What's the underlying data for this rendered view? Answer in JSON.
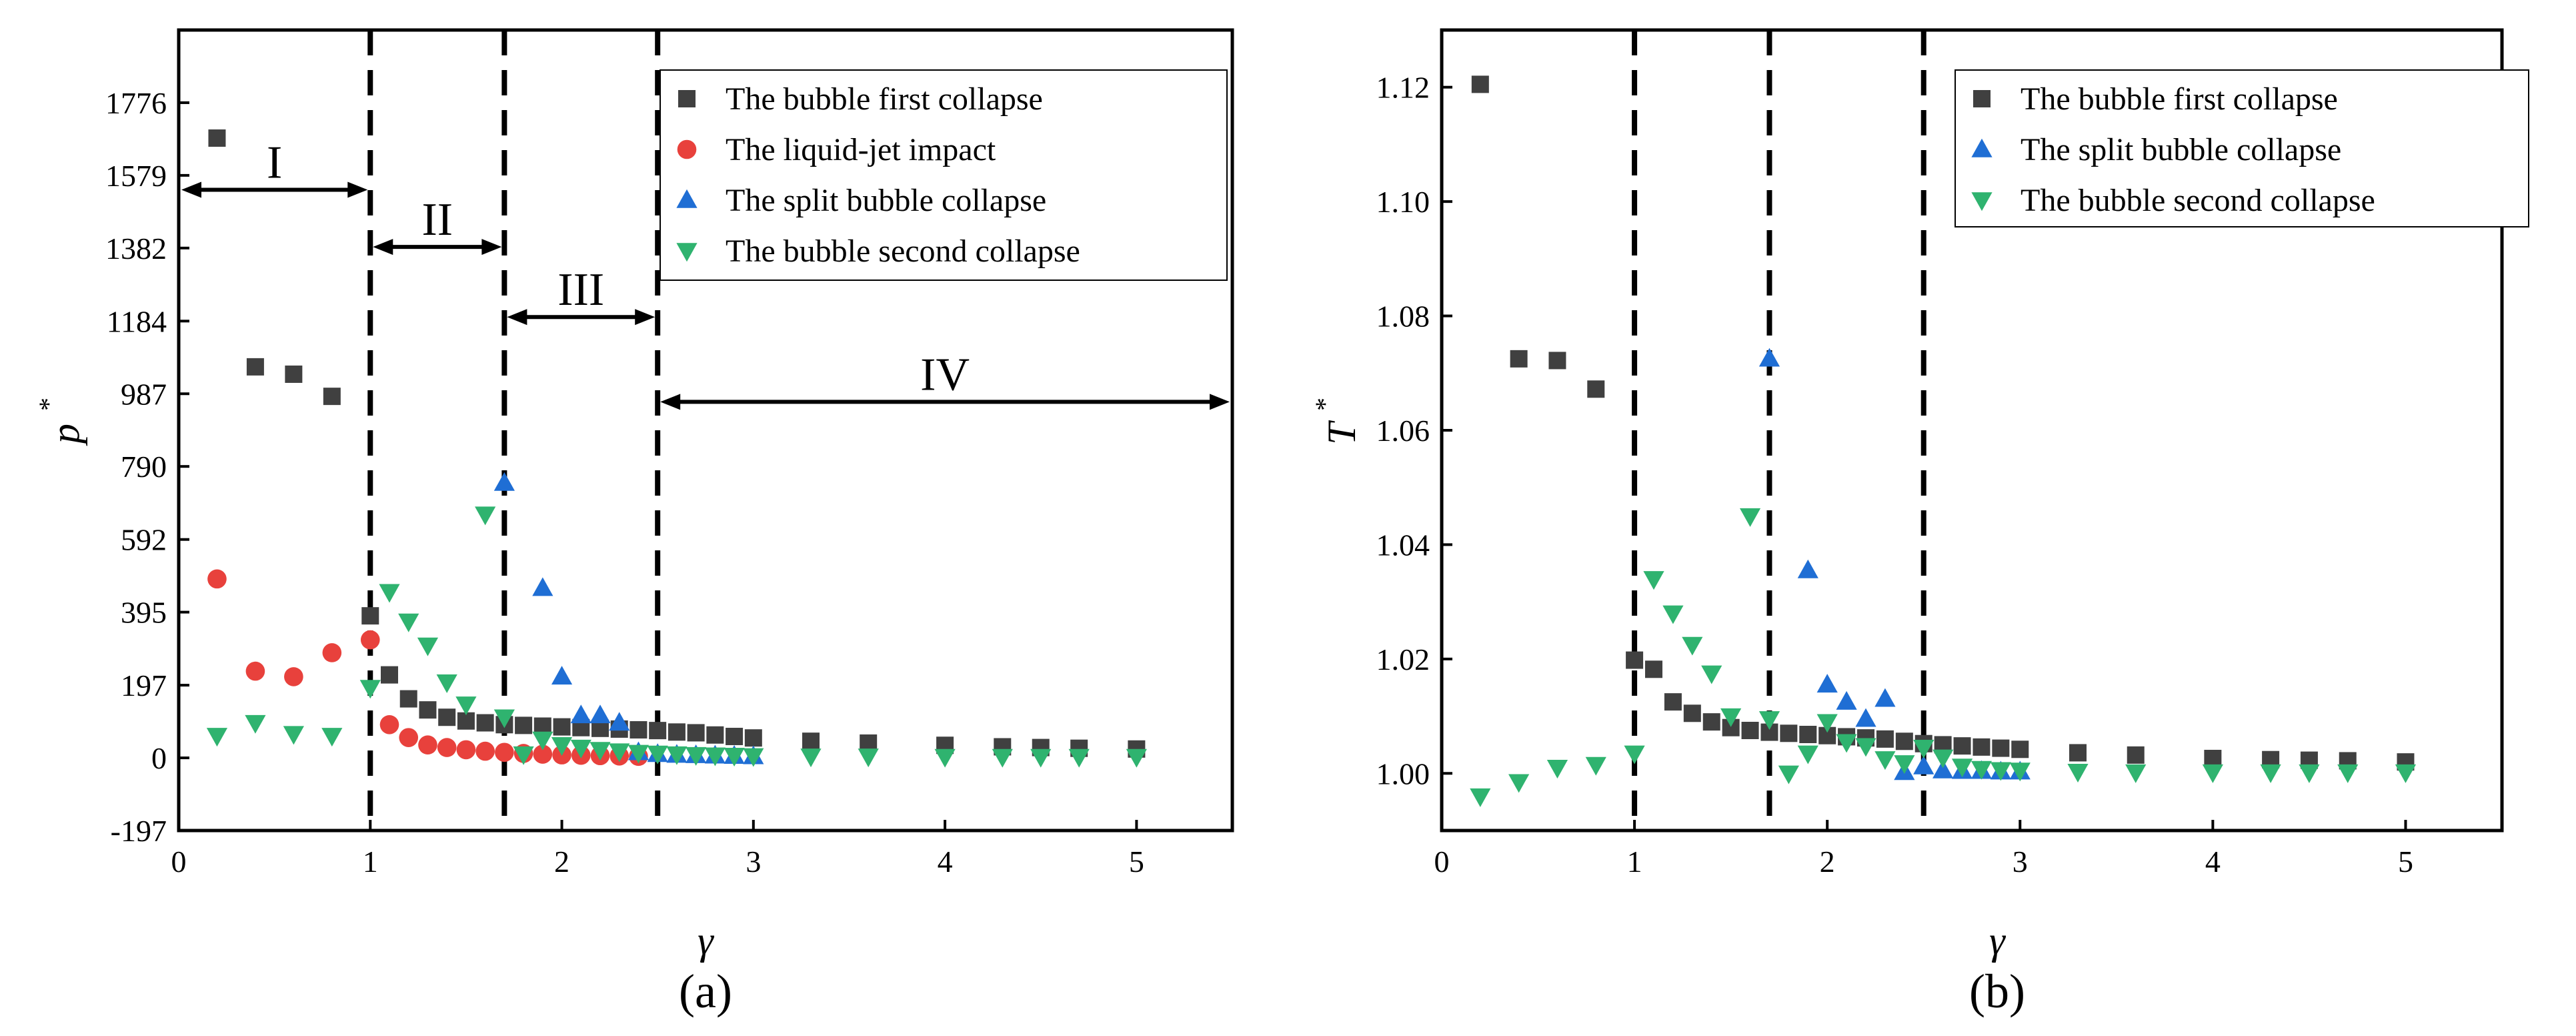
{
  "figure": {
    "panel_a_label": "(a)",
    "panel_b_label": "(b)"
  },
  "chart_data": [
    {
      "type": "scatter",
      "panel": "(a)",
      "xlabel": "γ",
      "ylabel": "p",
      "ylabel_superscript": "*",
      "xlim": [
        0,
        5.5
      ],
      "ylim": [
        -197,
        1973
      ],
      "xticks": [
        0,
        1,
        2,
        3,
        4,
        5
      ],
      "yticks": [
        -197,
        0,
        197,
        395,
        592,
        790,
        987,
        1184,
        1382,
        1579,
        1776
      ],
      "legend_position": "top-right",
      "boundaries": [
        1,
        1.7,
        2.5
      ],
      "regions": [
        {
          "label": "I",
          "from": 0,
          "to": 1,
          "y": 1540
        },
        {
          "label": "II",
          "from": 1,
          "to": 1.7,
          "y": 1385
        },
        {
          "label": "III",
          "from": 1.7,
          "to": 2.5,
          "y": 1195
        },
        {
          "label": "IV",
          "from": 2.5,
          "to": 5.5,
          "y": 965
        }
      ],
      "series": [
        {
          "name": "The bubble first collapse",
          "marker": "square",
          "color": "#404040",
          "x": [
            0.2,
            0.4,
            0.6,
            0.8,
            1.0,
            1.1,
            1.2,
            1.3,
            1.4,
            1.5,
            1.6,
            1.7,
            1.8,
            1.9,
            2.0,
            2.1,
            2.2,
            2.3,
            2.4,
            2.5,
            2.6,
            2.7,
            2.8,
            2.9,
            3.0,
            3.3,
            3.6,
            4.0,
            4.3,
            4.5,
            4.7,
            5.0
          ],
          "values": [
            1680,
            1060,
            1040,
            980,
            385,
            225,
            160,
            130,
            110,
            100,
            95,
            90,
            88,
            86,
            84,
            82,
            80,
            78,
            76,
            74,
            70,
            68,
            62,
            58,
            54,
            45,
            40,
            34,
            30,
            28,
            26,
            24
          ]
        },
        {
          "name": "The liquid-jet impact",
          "marker": "circle",
          "color": "#e8413c",
          "x": [
            0.2,
            0.4,
            0.6,
            0.8,
            1.0,
            1.1,
            1.2,
            1.3,
            1.4,
            1.5,
            1.6,
            1.7,
            1.8,
            1.9,
            2.0,
            2.1,
            2.2,
            2.3,
            2.4
          ],
          "values": [
            485,
            235,
            220,
            285,
            320,
            90,
            55,
            35,
            28,
            22,
            18,
            15,
            12,
            10,
            8,
            7,
            6,
            5,
            4
          ]
        },
        {
          "name": "The split bubble collapse",
          "marker": "triangle-up",
          "color": "#1f6ed4",
          "x": [
            1.7,
            1.9,
            2.0,
            2.1,
            2.2,
            2.3,
            2.4,
            2.5,
            2.6,
            2.7,
            2.8,
            2.9,
            3.0
          ],
          "values": [
            745,
            460,
            220,
            115,
            115,
            95,
            15,
            10,
            8,
            7,
            6,
            5,
            4
          ]
        },
        {
          "name": "The bubble second collapse",
          "marker": "triangle-down",
          "color": "#2fb36f",
          "x": [
            0.2,
            0.4,
            0.6,
            0.8,
            1.0,
            1.1,
            1.2,
            1.3,
            1.4,
            1.5,
            1.6,
            1.7,
            1.8,
            1.9,
            2.0,
            2.1,
            2.2,
            2.3,
            2.4,
            2.5,
            2.6,
            2.7,
            2.8,
            2.9,
            3.0,
            3.3,
            3.6,
            4.0,
            4.3,
            4.5,
            4.7,
            5.0
          ],
          "values": [
            60,
            95,
            65,
            60,
            190,
            450,
            370,
            305,
            205,
            145,
            660,
            110,
            10,
            50,
            35,
            28,
            22,
            18,
            14,
            12,
            10,
            8,
            7,
            6,
            5,
            4,
            4,
            3,
            3,
            3,
            3,
            3
          ]
        }
      ]
    },
    {
      "type": "scatter",
      "panel": "(b)",
      "xlabel": "γ",
      "ylabel": "T",
      "ylabel_superscript": "*",
      "xlim": [
        0,
        5.5
      ],
      "ylim": [
        0.99,
        1.13
      ],
      "xticks": [
        0,
        1,
        2,
        3,
        4,
        5
      ],
      "yticks": [
        1.0,
        1.02,
        1.04,
        1.06,
        1.08,
        1.1,
        1.12
      ],
      "ytick_labels": [
        "1.00",
        "1.02",
        "1.04",
        "1.06",
        "1.08",
        "1.10",
        "1.12"
      ],
      "legend_position": "top-right",
      "boundaries": [
        1,
        1.7,
        2.5
      ],
      "series": [
        {
          "name": "The bubble first collapse",
          "marker": "square",
          "color": "#404040",
          "x": [
            0.2,
            0.4,
            0.6,
            0.8,
            1.0,
            1.1,
            1.2,
            1.3,
            1.4,
            1.5,
            1.6,
            1.7,
            1.8,
            1.9,
            2.0,
            2.1,
            2.2,
            2.3,
            2.4,
            2.5,
            2.6,
            2.7,
            2.8,
            2.9,
            3.0,
            3.3,
            3.6,
            4.0,
            4.3,
            4.5,
            4.7,
            5.0
          ],
          "values": [
            1.1205,
            1.0725,
            1.0722,
            1.0672,
            1.0198,
            1.0182,
            1.0125,
            1.0105,
            1.009,
            1.008,
            1.0075,
            1.0072,
            1.007,
            1.0068,
            1.0066,
            1.0064,
            1.0062,
            1.006,
            1.0056,
            1.0052,
            1.005,
            1.0048,
            1.0046,
            1.0044,
            1.0042,
            1.0036,
            1.0032,
            1.0026,
            1.0024,
            1.0023,
            1.0022,
            1.002
          ]
        },
        {
          "name": "The split bubble collapse",
          "marker": "triangle-up",
          "color": "#1f6ed4",
          "x": [
            1.7,
            1.9,
            2.0,
            2.1,
            2.2,
            2.3,
            2.4,
            2.5,
            2.6,
            2.7,
            2.8,
            2.9,
            3.0
          ],
          "values": [
            1.0725,
            1.0355,
            1.0155,
            1.0125,
            1.0095,
            1.013,
            1.0002,
            1.0012,
            1.0005,
            1.0004,
            1.0004,
            1.0003,
            1.0003
          ]
        },
        {
          "name": "The bubble second collapse",
          "marker": "triangle-down",
          "color": "#2fb36f",
          "x": [
            0.2,
            0.4,
            0.6,
            0.8,
            1.0,
            1.1,
            1.2,
            1.3,
            1.4,
            1.5,
            1.6,
            1.7,
            1.8,
            1.9,
            2.0,
            2.1,
            2.2,
            2.3,
            2.4,
            2.5,
            2.6,
            2.7,
            2.8,
            2.9,
            3.0,
            3.3,
            3.6,
            4.0,
            4.3,
            4.5,
            4.7,
            5.0
          ],
          "values": [
            0.996,
            0.9985,
            1.001,
            1.0015,
            1.0035,
            1.034,
            1.028,
            1.0225,
            1.0175,
            1.01,
            1.045,
            1.0095,
            1.0,
            1.0035,
            1.009,
            1.0055,
            1.0048,
            1.0025,
            1.0018,
            1.0045,
            1.0028,
            1.0012,
            1.0008,
            1.0006,
            1.0005,
            1.0003,
            1.0002,
            1.0002,
            1.0002,
            1.0002,
            1.0002,
            1.0002
          ]
        }
      ]
    }
  ]
}
